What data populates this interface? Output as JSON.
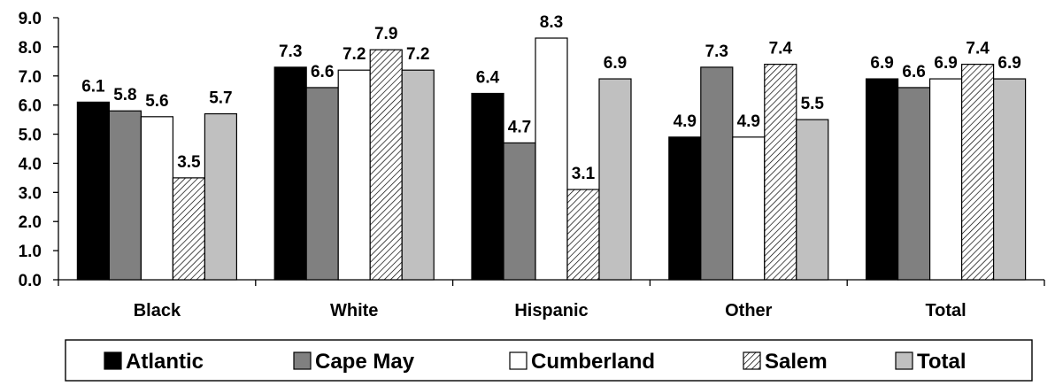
{
  "chart_data": {
    "type": "bar",
    "categories": [
      "Black",
      "White",
      "Hispanic",
      "Other",
      "Total"
    ],
    "series": [
      {
        "name": "Atlantic",
        "fill": "solid",
        "color": "#000000",
        "values": [
          6.1,
          7.3,
          6.4,
          4.9,
          6.9
        ]
      },
      {
        "name": "Cape May",
        "fill": "solid",
        "color": "#808080",
        "values": [
          5.8,
          6.6,
          4.7,
          7.3,
          6.6
        ]
      },
      {
        "name": "Cumberland",
        "fill": "solid",
        "color": "#ffffff",
        "values": [
          5.6,
          7.2,
          8.3,
          4.9,
          6.9
        ]
      },
      {
        "name": "Salem",
        "fill": "hatch",
        "color": "#ffffff",
        "values": [
          3.5,
          7.9,
          3.1,
          7.4,
          7.4
        ]
      },
      {
        "name": "Total",
        "fill": "solid",
        "color": "#c0c0c0",
        "values": [
          5.7,
          7.2,
          6.9,
          5.5,
          6.9
        ]
      }
    ],
    "y_ticks": [
      "0.0",
      "1.0",
      "2.0",
      "3.0",
      "4.0",
      "5.0",
      "6.0",
      "7.0",
      "8.0",
      "9.0"
    ],
    "ylim": [
      0,
      9
    ],
    "title": "",
    "xlabel": "",
    "ylabel": "",
    "grid": false,
    "legend_position": "bottom"
  }
}
